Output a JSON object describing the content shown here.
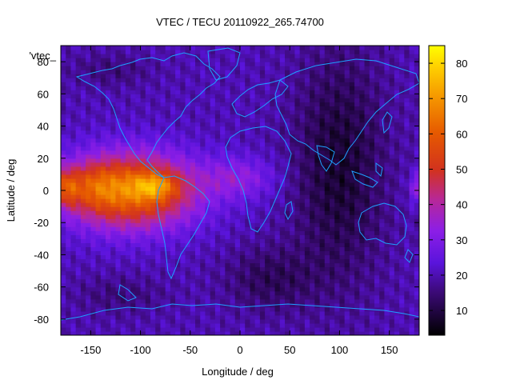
{
  "chart_data": {
    "type": "heatmap",
    "title": "VTEC / TECU 20110922_265.74700",
    "xlabel": "Longitude / deg",
    "ylabel": "Latitude / deg",
    "xlim": [
      -180,
      180
    ],
    "ylim": [
      -90,
      90
    ],
    "x_ticks": [
      -150,
      -100,
      -50,
      0,
      50,
      100,
      150
    ],
    "y_ticks": [
      -80,
      -60,
      -40,
      -20,
      0,
      20,
      40,
      60,
      80
    ],
    "colorbar": {
      "range": [
        3,
        85
      ],
      "ticks": [
        10,
        20,
        30,
        40,
        50,
        60,
        70,
        80
      ]
    },
    "key_label": "'vtec_",
    "palette": "black-purple-red-orange-yellow",
    "overlay": "coastlines",
    "grid": false,
    "peak_value": 82,
    "peak_location": {
      "lon": -90,
      "lat": 2
    },
    "equatorial_band": {
      "lon_range": [
        -180,
        -40
      ],
      "lat_range": [
        -30,
        25
      ],
      "values_range": [
        40,
        82
      ]
    },
    "minimum_region": {
      "lon_range": [
        60,
        150
      ],
      "lat_range": [
        -70,
        80
      ],
      "values_range": [
        3,
        15
      ]
    },
    "grid_resolution": {
      "dlon": 5,
      "dlat": 2.5
    }
  }
}
